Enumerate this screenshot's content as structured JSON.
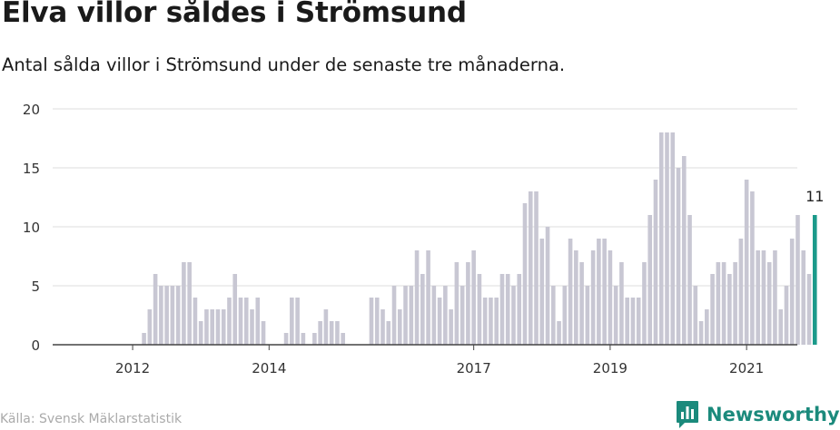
{
  "header": {
    "title": "Elva villor såldes i Strömsund",
    "subtitle": "Antal sålda villor i Strömsund under de senaste tre månaderna."
  },
  "footer": {
    "source": "Källa: Svensk Mäklarstatistik",
    "brand": "Newsworthy",
    "brand_icon": "newsworthy-logo-icon"
  },
  "colors": {
    "bar": "#c8c7d3",
    "highlight": "#1b9a8a",
    "grid": "#dddddd",
    "axis": "#444444",
    "text": "#333333"
  },
  "chart_data": {
    "type": "bar",
    "x_start": "2011-07",
    "x_interval": "month",
    "values": [
      0,
      0,
      0,
      0,
      0,
      0,
      0,
      0,
      1,
      3,
      6,
      5,
      5,
      5,
      5,
      7,
      7,
      4,
      2,
      3,
      3,
      3,
      3,
      4,
      6,
      4,
      4,
      3,
      4,
      2,
      0,
      0,
      0,
      1,
      4,
      4,
      1,
      0,
      1,
      2,
      3,
      2,
      2,
      1,
      0,
      0,
      0,
      0,
      4,
      4,
      3,
      2,
      5,
      3,
      5,
      5,
      8,
      6,
      8,
      5,
      4,
      5,
      3,
      7,
      5,
      7,
      8,
      6,
      4,
      4,
      4,
      6,
      6,
      5,
      6,
      12,
      13,
      13,
      9,
      10,
      5,
      2,
      5,
      9,
      8,
      7,
      5,
      8,
      9,
      9,
      8,
      5,
      7,
      4,
      4,
      4,
      7,
      11,
      14,
      18,
      18,
      18,
      15,
      16,
      11,
      5,
      2,
      3,
      6,
      7,
      7,
      6,
      7,
      9,
      14,
      13,
      8,
      8,
      7,
      8,
      3,
      5,
      9,
      11,
      8,
      6,
      11
    ],
    "highlight_index": 126,
    "highlight_label": "11",
    "xticks": [
      {
        "label": "2012",
        "index": 6
      },
      {
        "label": "2014",
        "index": 30
      },
      {
        "label": "2017",
        "index": 66
      },
      {
        "label": "2019",
        "index": 90
      },
      {
        "label": "2021",
        "index": 114
      }
    ],
    "yticks": [
      0,
      5,
      10,
      15,
      20
    ],
    "ylim": [
      0,
      20
    ],
    "grid": true
  }
}
